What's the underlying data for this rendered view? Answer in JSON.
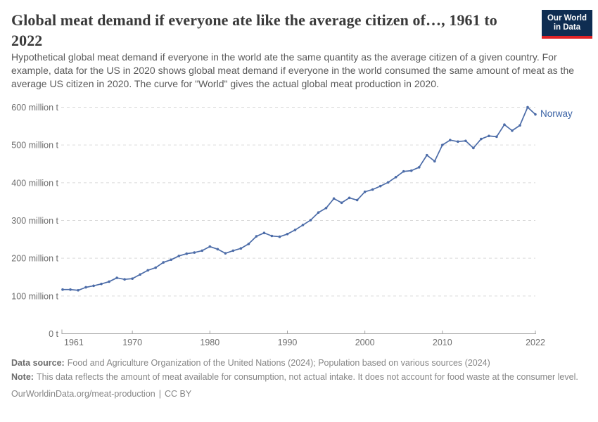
{
  "header": {
    "title": "Global meat demand if everyone ate like the average citizen of…, 1961 to 2022",
    "logo": {
      "line1": "Our World",
      "line2": "in Data"
    }
  },
  "subtitle": "Hypothetical global meat demand if everyone in the world ate the same quantity as the average citizen of a given country. For example, data for the US in 2020 shows global meat demand if everyone in the world consumed the same amount of meat as the average US citizen in 2020. The curve for \"World\" gives the actual global meat production in 2020.",
  "chart_data": {
    "type": "line",
    "title": "Global meat demand if everyone ate like the average citizen of…, 1961 to 2022",
    "unit": "million t",
    "grid": "horizontal-dashed",
    "legend_position": "end-of-line-label",
    "xlim": [
      1961,
      2022
    ],
    "ylim": [
      0,
      620
    ],
    "x_ticks": [
      1961,
      1970,
      1980,
      1990,
      2000,
      2010,
      2022
    ],
    "y_ticks": [
      {
        "value": 0,
        "label": "0 t"
      },
      {
        "value": 100,
        "label": "100 million t"
      },
      {
        "value": 200,
        "label": "200 million t"
      },
      {
        "value": 300,
        "label": "300 million t"
      },
      {
        "value": 400,
        "label": "400 million t"
      },
      {
        "value": 500,
        "label": "500 million t"
      },
      {
        "value": 600,
        "label": "600 million t"
      }
    ],
    "series": [
      {
        "name": "Norway",
        "color": "#4c6ca8",
        "years": [
          1961,
          1962,
          1963,
          1964,
          1965,
          1966,
          1967,
          1968,
          1969,
          1970,
          1971,
          1972,
          1973,
          1974,
          1975,
          1976,
          1977,
          1978,
          1979,
          1980,
          1981,
          1982,
          1983,
          1984,
          1985,
          1986,
          1987,
          1988,
          1989,
          1990,
          1991,
          1992,
          1993,
          1994,
          1995,
          1996,
          1997,
          1998,
          1999,
          2000,
          2001,
          2002,
          2003,
          2004,
          2005,
          2006,
          2007,
          2008,
          2009,
          2010,
          2011,
          2012,
          2013,
          2014,
          2015,
          2016,
          2017,
          2018,
          2019,
          2020,
          2021,
          2022
        ],
        "values": [
          117,
          117,
          115,
          123,
          127,
          132,
          138,
          148,
          144,
          146,
          157,
          168,
          175,
          189,
          196,
          206,
          212,
          215,
          220,
          231,
          224,
          213,
          220,
          226,
          238,
          258,
          267,
          259,
          257,
          264,
          275,
          288,
          301,
          321,
          333,
          358,
          347,
          360,
          354,
          376,
          382,
          391,
          401,
          415,
          430,
          432,
          441,
          473,
          457,
          500,
          513,
          509,
          511,
          492,
          516,
          524,
          522,
          554,
          538,
          552,
          600,
          581
        ]
      }
    ],
    "end_label": "Norway"
  },
  "footer": {
    "data_source_label": "Data source:",
    "data_source": "Food and Agriculture Organization of the United Nations (2024); Population based on various sources (2024)",
    "note_label": "Note:",
    "note": "This data reflects the amount of meat available for consumption, not actual intake. It does not account for food waste at the consumer level.",
    "url": "OurWorldinData.org/meat-production",
    "divider": "|",
    "license": "CC BY"
  },
  "colors": {
    "line": "#4c6ca8",
    "end_label": "#3a62a5",
    "gridline": "#dadada",
    "axis": "#a3a3a3",
    "tick_label": "#6e6e6e",
    "logo_bg": "#0f2d52",
    "logo_stripe": "#e02326"
  }
}
